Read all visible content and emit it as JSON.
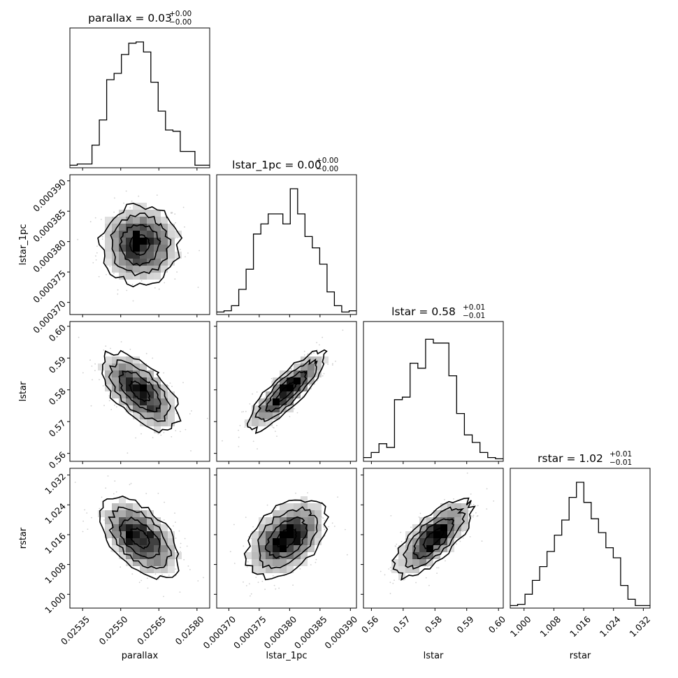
{
  "chart_data": {
    "type": "corner",
    "parameters": [
      {
        "name": "parallax",
        "axis_label": "parallax",
        "title_main": "parallax = 0.03",
        "title_sup": "+0.00",
        "title_sub": "−0.00",
        "range": [
          0.0253,
          0.02585
        ],
        "ticks": [
          0.02535,
          0.0255,
          0.02565,
          0.0258
        ],
        "tick_labels": [
          "0.02535",
          "0.02550",
          "0.02565",
          "0.02580"
        ],
        "hist": [
          0.02,
          0.03,
          0.03,
          0.18,
          0.38,
          0.7,
          0.75,
          0.9,
          0.99,
          1.0,
          0.92,
          0.68,
          0.45,
          0.3,
          0.29,
          0.13,
          0.13,
          0.02,
          0.02
        ]
      },
      {
        "name": "lstar_1pc",
        "axis_label": "lstar_1pc",
        "title_main": "lstar_1pc = 0.00",
        "title_sup": "+0.00",
        "title_sub": "−0.00",
        "range": [
          0.000368,
          0.000391
        ],
        "ticks": [
          0.00037,
          0.000375,
          0.00038,
          0.000385,
          0.00039
        ],
        "tick_labels": [
          "0.000370",
          "0.000375",
          "0.000380",
          "0.000385",
          "0.000390"
        ],
        "hist": [
          0.02,
          0.03,
          0.07,
          0.2,
          0.36,
          0.64,
          0.72,
          0.8,
          0.8,
          0.72,
          1.0,
          0.8,
          0.62,
          0.53,
          0.4,
          0.18,
          0.07,
          0.02,
          0.03
        ]
      },
      {
        "name": "lstar",
        "axis_label": "lstar",
        "title_main": "lstar = 0.58",
        "title_sup": "+0.01",
        "title_sub": "−0.01",
        "range": [
          0.5575,
          0.6015
        ],
        "ticks": [
          0.56,
          0.57,
          0.58,
          0.59,
          0.6
        ],
        "tick_labels": [
          "0.56",
          "0.57",
          "0.58",
          "0.59",
          "0.60"
        ],
        "hist": [
          0.03,
          0.07,
          0.14,
          0.11,
          0.49,
          0.51,
          0.78,
          0.74,
          0.97,
          0.94,
          0.94,
          0.68,
          0.38,
          0.21,
          0.15,
          0.07,
          0.03,
          0.02
        ]
      },
      {
        "name": "rstar",
        "axis_label": "rstar",
        "title_main": "rstar = 1.02",
        "title_sup": "+0.01",
        "title_sub": "−0.01",
        "range": [
          0.9963,
          1.0338
        ],
        "ticks": [
          1.0,
          1.008,
          1.016,
          1.024,
          1.032
        ],
        "tick_labels": [
          "1.000",
          "1.008",
          "1.016",
          "1.024",
          "1.032"
        ],
        "hist": [
          0.02,
          0.03,
          0.11,
          0.22,
          0.33,
          0.45,
          0.58,
          0.7,
          0.88,
          1.0,
          0.84,
          0.71,
          0.6,
          0.48,
          0.4,
          0.18,
          0.07,
          0.02,
          0.02
        ]
      }
    ],
    "correlations": [
      {
        "x": 0,
        "y": 1,
        "rho": 0.0
      },
      {
        "x": 0,
        "y": 2,
        "rho": -0.6
      },
      {
        "x": 1,
        "y": 2,
        "rho": 0.84
      },
      {
        "x": 0,
        "y": 3,
        "rho": -0.5
      },
      {
        "x": 1,
        "y": 3,
        "rho": 0.42
      },
      {
        "x": 2,
        "y": 3,
        "rho": 0.72
      }
    ],
    "contour_levels_sigma": [
      0.5,
      1.0,
      1.5,
      2.0
    ]
  }
}
